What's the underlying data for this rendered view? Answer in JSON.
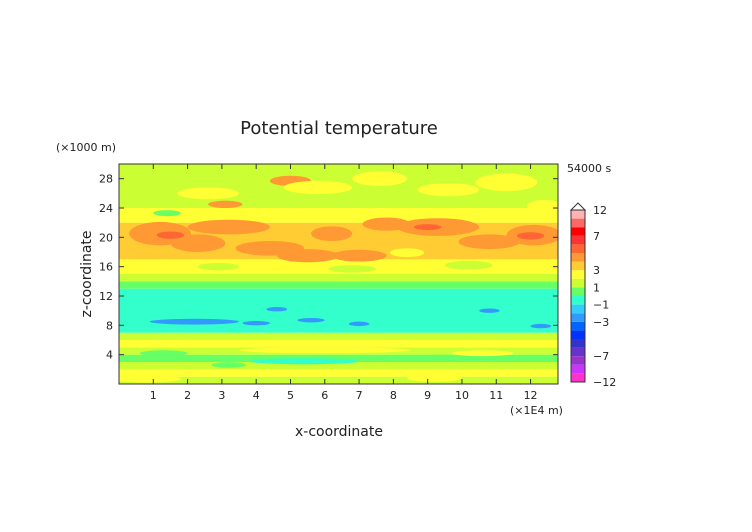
{
  "chart_data": {
    "type": "heatmap",
    "title": "Potential temperature",
    "xlabel": "x-coordinate",
    "ylabel": "z-coordinate",
    "x_unit": "(×1E4 m)",
    "y_unit": "(×1000 m)",
    "time_label": "54000 s",
    "x_ticks": [
      "1",
      "2",
      "3",
      "4",
      "5",
      "6",
      "7",
      "8",
      "9",
      "10",
      "11",
      "12"
    ],
    "y_ticks": [
      "4",
      "8",
      "12",
      "16",
      "20",
      "24",
      "28"
    ],
    "xlim": [
      0,
      12.8
    ],
    "ylim": [
      0,
      30
    ],
    "colorbar": {
      "labels": [
        "12",
        "7",
        "3",
        "1",
        "−1",
        "−3",
        "−7",
        "−12"
      ],
      "levels": [
        -12,
        -10,
        -8,
        -7,
        -6,
        -5,
        -4,
        -3,
        -2,
        -1,
        0,
        1,
        2,
        3,
        4,
        5,
        6,
        7,
        8,
        10,
        12
      ],
      "colors": [
        "#ff33cc",
        "#cc33ff",
        "#9933cc",
        "#6633cc",
        "#3333cc",
        "#0033ff",
        "#0066ff",
        "#3399ff",
        "#33ccff",
        "#33ffcc",
        "#66ff66",
        "#ccff33",
        "#ffff33",
        "#ffcc33",
        "#ff9933",
        "#ff6633",
        "#ff3333",
        "#ff0000",
        "#ff6666",
        "#ffb3b3"
      ]
    },
    "bands": [
      {
        "z": [
          0,
          1
        ],
        "color": "#ccff33"
      },
      {
        "z": [
          1,
          2
        ],
        "color": "#ffff33"
      },
      {
        "z": [
          2,
          3
        ],
        "color": "#ccff33"
      },
      {
        "z": [
          3,
          4
        ],
        "color": "#66ff66"
      },
      {
        "z": [
          4,
          5
        ],
        "color": "#ccff33"
      },
      {
        "z": [
          5,
          6
        ],
        "color": "#ffff33"
      },
      {
        "z": [
          6,
          7
        ],
        "color": "#ccff33"
      },
      {
        "z": [
          7,
          13
        ],
        "color": "#33ffcc"
      },
      {
        "z": [
          13,
          14
        ],
        "color": "#66ff66"
      },
      {
        "z": [
          14,
          15
        ],
        "color": "#ccff33"
      },
      {
        "z": [
          15,
          17
        ],
        "color": "#ffff33"
      },
      {
        "z": [
          17,
          22
        ],
        "color": "#ffcc33"
      },
      {
        "z": [
          22,
          24
        ],
        "color": "#ffff33"
      },
      {
        "z": [
          24,
          30
        ],
        "color": "#ccff33"
      }
    ],
    "blobs": [
      {
        "x": 1.2,
        "z": 20.5,
        "rx": 0.9,
        "rz": 1.6,
        "color": "#ff9933"
      },
      {
        "x": 2.3,
        "z": 19.2,
        "rx": 0.8,
        "rz": 1.2,
        "color": "#ff9933"
      },
      {
        "x": 3.2,
        "z": 21.4,
        "rx": 1.2,
        "rz": 1.0,
        "color": "#ff9933"
      },
      {
        "x": 4.4,
        "z": 18.5,
        "rx": 1.0,
        "rz": 1.0,
        "color": "#ff9933"
      },
      {
        "x": 5.5,
        "z": 17.5,
        "rx": 0.9,
        "rz": 0.9,
        "color": "#ff9933"
      },
      {
        "x": 6.2,
        "z": 20.5,
        "rx": 0.6,
        "rz": 1.0,
        "color": "#ff9933"
      },
      {
        "x": 7.0,
        "z": 17.5,
        "rx": 0.8,
        "rz": 0.8,
        "color": "#ff9933"
      },
      {
        "x": 7.8,
        "z": 21.8,
        "rx": 0.7,
        "rz": 0.9,
        "color": "#ff9933"
      },
      {
        "x": 9.3,
        "z": 21.4,
        "rx": 1.2,
        "rz": 1.2,
        "color": "#ff9933"
      },
      {
        "x": 10.8,
        "z": 19.4,
        "rx": 0.9,
        "rz": 1.0,
        "color": "#ff9933"
      },
      {
        "x": 12.1,
        "z": 20.3,
        "rx": 0.8,
        "rz": 1.4,
        "color": "#ff9933"
      },
      {
        "x": 5.0,
        "z": 27.7,
        "rx": 0.6,
        "rz": 0.7,
        "color": "#ff9933"
      },
      {
        "x": 3.1,
        "z": 24.5,
        "rx": 0.5,
        "rz": 0.5,
        "color": "#ff9933"
      },
      {
        "x": 1.5,
        "z": 20.3,
        "rx": 0.4,
        "rz": 0.5,
        "color": "#ff6633"
      },
      {
        "x": 9.0,
        "z": 21.4,
        "rx": 0.4,
        "rz": 0.4,
        "color": "#ff6633"
      },
      {
        "x": 12.0,
        "z": 20.2,
        "rx": 0.4,
        "rz": 0.5,
        "color": "#ff6633"
      },
      {
        "x": 2.6,
        "z": 26.0,
        "rx": 0.9,
        "rz": 0.8,
        "color": "#ffff33"
      },
      {
        "x": 5.8,
        "z": 26.8,
        "rx": 1.0,
        "rz": 0.9,
        "color": "#ffff33"
      },
      {
        "x": 7.6,
        "z": 28.0,
        "rx": 0.8,
        "rz": 1.0,
        "color": "#ffff33"
      },
      {
        "x": 9.6,
        "z": 26.5,
        "rx": 0.9,
        "rz": 0.9,
        "color": "#ffff33"
      },
      {
        "x": 11.3,
        "z": 27.5,
        "rx": 0.9,
        "rz": 1.2,
        "color": "#ffff33"
      },
      {
        "x": 12.4,
        "z": 24.3,
        "rx": 0.5,
        "rz": 0.8,
        "color": "#ffff33"
      },
      {
        "x": 1.4,
        "z": 23.3,
        "rx": 0.4,
        "rz": 0.4,
        "color": "#66ff66"
      },
      {
        "x": 2.9,
        "z": 16.0,
        "rx": 0.6,
        "rz": 0.5,
        "color": "#ccff33"
      },
      {
        "x": 6.8,
        "z": 15.7,
        "rx": 0.7,
        "rz": 0.5,
        "color": "#ccff33"
      },
      {
        "x": 10.2,
        "z": 16.2,
        "rx": 0.7,
        "rz": 0.6,
        "color": "#ccff33"
      },
      {
        "x": 8.4,
        "z": 17.9,
        "rx": 0.5,
        "rz": 0.6,
        "color": "#ffff33"
      },
      {
        "x": 2.2,
        "z": 8.5,
        "rx": 1.3,
        "rz": 0.4,
        "color": "#3399ff"
      },
      {
        "x": 4.0,
        "z": 8.3,
        "rx": 0.4,
        "rz": 0.3,
        "color": "#3399ff"
      },
      {
        "x": 5.6,
        "z": 8.7,
        "rx": 0.4,
        "rz": 0.3,
        "color": "#3399ff"
      },
      {
        "x": 7.0,
        "z": 8.2,
        "rx": 0.3,
        "rz": 0.3,
        "color": "#3399ff"
      },
      {
        "x": 12.3,
        "z": 7.9,
        "rx": 0.3,
        "rz": 0.3,
        "color": "#3399ff"
      },
      {
        "x": 4.6,
        "z": 10.2,
        "rx": 0.3,
        "rz": 0.3,
        "color": "#3399ff"
      },
      {
        "x": 10.8,
        "z": 10.0,
        "rx": 0.3,
        "rz": 0.3,
        "color": "#3399ff"
      },
      {
        "x": 1.3,
        "z": 4.2,
        "rx": 0.7,
        "rz": 0.4,
        "color": "#66ff66"
      },
      {
        "x": 5.4,
        "z": 3.1,
        "rx": 1.6,
        "rz": 0.4,
        "color": "#33ffcc"
      },
      {
        "x": 9.4,
        "z": 3.6,
        "rx": 1.0,
        "rz": 0.4,
        "color": "#66ff66"
      },
      {
        "x": 3.2,
        "z": 2.6,
        "rx": 0.5,
        "rz": 0.4,
        "color": "#66ff66"
      },
      {
        "x": 6.0,
        "z": 4.6,
        "rx": 2.5,
        "rz": 0.4,
        "color": "#ffff33"
      },
      {
        "x": 10.6,
        "z": 4.2,
        "rx": 0.9,
        "rz": 0.4,
        "color": "#ffff33"
      },
      {
        "x": 0.8,
        "z": 0.7,
        "rx": 1.0,
        "rz": 0.5,
        "color": "#ffff33"
      },
      {
        "x": 9.2,
        "z": 0.8,
        "rx": 0.8,
        "rz": 0.5,
        "color": "#ffff33"
      }
    ]
  }
}
